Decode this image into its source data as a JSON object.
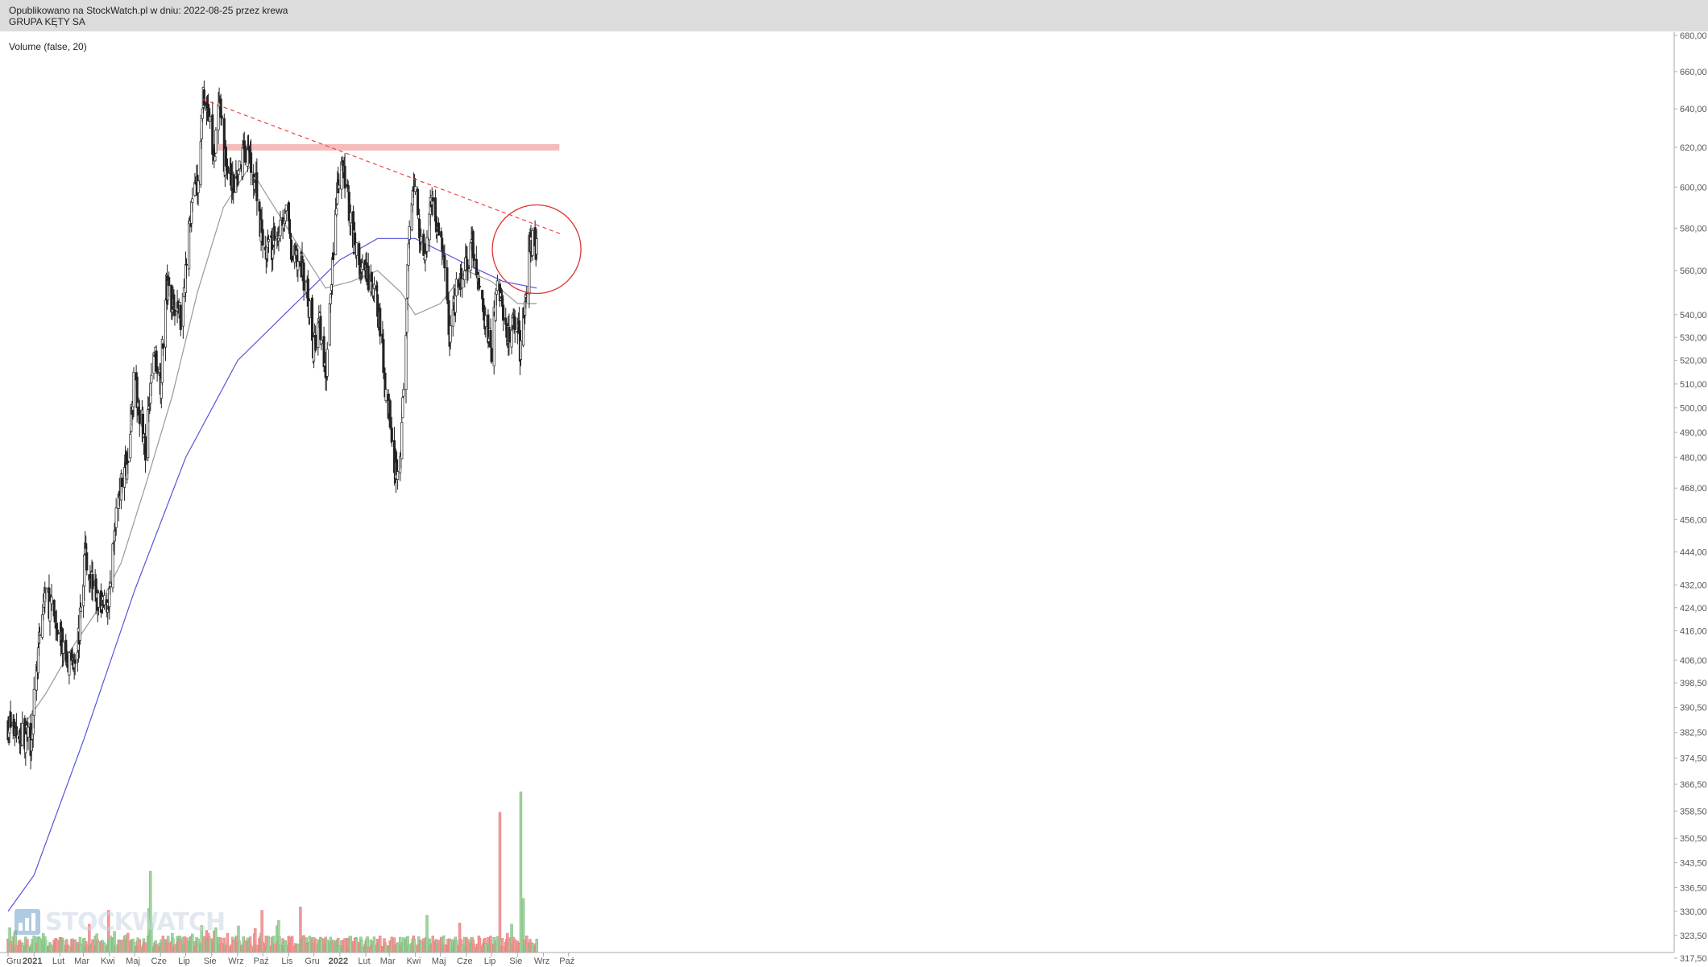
{
  "header": {
    "line1": "Opublikowano na StockWatch.pl w dniu: 2022-08-25 przez krewa",
    "line2": "GRUPA KĘTY SA"
  },
  "indicator_label": "Volume (false, 20)",
  "logo_text": "STOCKWATCH",
  "colors": {
    "up_volume": "#9fd39f",
    "down_volume": "#f29a9a",
    "candle": "#222222",
    "ma_long": "#5555dd",
    "ma_short": "#999999",
    "trendline": "#ee4444",
    "resistance_zone": "#f5b5b5",
    "highlight_circle": "#dd3333"
  },
  "chart_data": {
    "type": "candlestick",
    "title": "GRUPA KĘTY SA",
    "x_ticks": [
      "Gru",
      "2021",
      "Lut",
      "Mar",
      "Kwi",
      "Maj",
      "Cze",
      "Lip",
      "Sie",
      "Wrz",
      "Paź",
      "Lis",
      "Gru",
      "2022",
      "Lut",
      "Mar",
      "Kwi",
      "Maj",
      "Cze",
      "Lip",
      "Sie",
      "Wrz",
      "Paź"
    ],
    "y_ticks": [
      "680,00",
      "660,00",
      "640,00",
      "620,00",
      "600,00",
      "580,00",
      "560,00",
      "540,00",
      "530,00",
      "520,00",
      "510,00",
      "500,00",
      "490,00",
      "480,00",
      "468,00",
      "456,00",
      "444,00",
      "432,00",
      "424,00",
      "416,00",
      "406,00",
      "398,50",
      "390,50",
      "382,50",
      "374,50",
      "366,50",
      "358,50",
      "350,50",
      "343,50",
      "336,50",
      "330,00",
      "323,50",
      "317,50"
    ],
    "y_scale": "log",
    "ylim": [
      317.5,
      680
    ],
    "price_anchors": [
      [
        "2020-12-01",
        385
      ],
      [
        "2020-12-28",
        380
      ],
      [
        "2021-01-05",
        405
      ],
      [
        "2021-01-14",
        430
      ],
      [
        "2021-01-25",
        420
      ],
      [
        "2021-02-05",
        410
      ],
      [
        "2021-02-15",
        405
      ],
      [
        "2021-02-24",
        415
      ],
      [
        "2021-03-03",
        445
      ],
      [
        "2021-03-10",
        435
      ],
      [
        "2021-03-22",
        422
      ],
      [
        "2021-04-01",
        428
      ],
      [
        "2021-04-12",
        465
      ],
      [
        "2021-04-22",
        480
      ],
      [
        "2021-04-30",
        510
      ],
      [
        "2021-05-10",
        495
      ],
      [
        "2021-05-14",
        480
      ],
      [
        "2021-05-24",
        525
      ],
      [
        "2021-06-01",
        512
      ],
      [
        "2021-06-08",
        552
      ],
      [
        "2021-06-18",
        545
      ],
      [
        "2021-06-25",
        540
      ],
      [
        "2021-07-02",
        565
      ],
      [
        "2021-07-09",
        595
      ],
      [
        "2021-07-16",
        600
      ],
      [
        "2021-07-22",
        650
      ],
      [
        "2021-07-28",
        640
      ],
      [
        "2021-08-03",
        615
      ],
      [
        "2021-08-10",
        640
      ],
      [
        "2021-08-16",
        615
      ],
      [
        "2021-08-25",
        600
      ],
      [
        "2021-09-01",
        603
      ],
      [
        "2021-09-08",
        620
      ],
      [
        "2021-09-15",
        615
      ],
      [
        "2021-09-24",
        600
      ],
      [
        "2021-10-01",
        570
      ],
      [
        "2021-10-11",
        570
      ],
      [
        "2021-10-20",
        580
      ],
      [
        "2021-10-28",
        590
      ],
      [
        "2021-11-05",
        565
      ],
      [
        "2021-11-12",
        565
      ],
      [
        "2021-11-22",
        555
      ],
      [
        "2021-11-30",
        525
      ],
      [
        "2021-12-08",
        535
      ],
      [
        "2021-12-15",
        510
      ],
      [
        "2021-12-22",
        560
      ],
      [
        "2021-12-30",
        600
      ],
      [
        "2022-01-05",
        610
      ],
      [
        "2022-01-12",
        590
      ],
      [
        "2022-01-20",
        570
      ],
      [
        "2022-01-27",
        560
      ],
      [
        "2022-02-04",
        555
      ],
      [
        "2022-02-15",
        545
      ],
      [
        "2022-02-24",
        510
      ],
      [
        "2022-03-03",
        495
      ],
      [
        "2022-03-08",
        475
      ],
      [
        "2022-03-15",
        485
      ],
      [
        "2022-03-21",
        530
      ],
      [
        "2022-03-24",
        570
      ],
      [
        "2022-03-31",
        605
      ],
      [
        "2022-04-07",
        575
      ],
      [
        "2022-04-14",
        570
      ],
      [
        "2022-04-21",
        595
      ],
      [
        "2022-04-28",
        580
      ],
      [
        "2022-05-05",
        565
      ],
      [
        "2022-05-12",
        530
      ],
      [
        "2022-05-20",
        550
      ],
      [
        "2022-05-30",
        560
      ],
      [
        "2022-06-08",
        570
      ],
      [
        "2022-06-16",
        555
      ],
      [
        "2022-06-23",
        535
      ],
      [
        "2022-07-01",
        525
      ],
      [
        "2022-07-08",
        555
      ],
      [
        "2022-07-15",
        540
      ],
      [
        "2022-07-22",
        530
      ],
      [
        "2022-07-29",
        540
      ],
      [
        "2022-08-04",
        525
      ],
      [
        "2022-08-09",
        545
      ],
      [
        "2022-08-12",
        555
      ],
      [
        "2022-08-16",
        575
      ],
      [
        "2022-08-25",
        572
      ]
    ],
    "moving_averages": [
      {
        "color": "#5555dd",
        "points": [
          [
            "2020-12-01",
            330
          ],
          [
            "2021-01-01",
            340
          ],
          [
            "2021-03-01",
            380
          ],
          [
            "2021-05-01",
            430
          ],
          [
            "2021-07-01",
            480
          ],
          [
            "2021-09-01",
            520
          ],
          [
            "2021-11-01",
            542
          ],
          [
            "2022-01-01",
            565
          ],
          [
            "2022-02-15",
            575
          ],
          [
            "2022-04-01",
            575
          ],
          [
            "2022-06-01",
            563
          ],
          [
            "2022-07-15",
            555
          ],
          [
            "2022-08-24",
            552
          ]
        ]
      },
      {
        "color": "#999999",
        "points": [
          [
            "2020-12-15",
            383
          ],
          [
            "2021-01-15",
            395
          ],
          [
            "2021-02-15",
            410
          ],
          [
            "2021-03-15",
            422
          ],
          [
            "2021-04-15",
            440
          ],
          [
            "2021-05-15",
            470
          ],
          [
            "2021-06-15",
            505
          ],
          [
            "2021-07-15",
            550
          ],
          [
            "2021-08-15",
            590
          ],
          [
            "2021-09-15",
            610
          ],
          [
            "2021-10-15",
            590
          ],
          [
            "2021-11-15",
            570
          ],
          [
            "2021-12-15",
            552
          ],
          [
            "2022-01-15",
            555
          ],
          [
            "2022-02-15",
            560
          ],
          [
            "2022-03-15",
            550
          ],
          [
            "2022-04-01",
            540
          ],
          [
            "2022-05-01",
            545
          ],
          [
            "2022-06-01",
            560
          ],
          [
            "2022-07-01",
            555
          ],
          [
            "2022-08-01",
            545
          ],
          [
            "2022-08-24",
            545
          ]
        ]
      }
    ],
    "trendline": {
      "from": [
        "2021-07-22",
        645
      ],
      "to": [
        "2022-09-23",
        577
      ]
    },
    "resistance_zone": {
      "from": "2021-08-05",
      "to": "2022-09-20",
      "value": 620
    },
    "highlight": {
      "center": [
        "2022-08-20",
        570
      ]
    },
    "volume_spikes": [
      [
        "2021-03-31",
        0.25
      ],
      [
        "2021-05-20",
        0.48
      ],
      [
        "2021-05-18",
        0.26
      ],
      [
        "2021-09-30",
        0.25
      ],
      [
        "2021-10-20",
        0.19
      ],
      [
        "2021-11-15",
        0.27
      ],
      [
        "2022-04-15",
        0.22
      ],
      [
        "2022-07-11",
        0.83
      ],
      [
        "2022-08-05",
        0.95
      ],
      [
        "2022-08-08",
        0.32
      ]
    ],
    "grid": false,
    "legend": "none"
  }
}
